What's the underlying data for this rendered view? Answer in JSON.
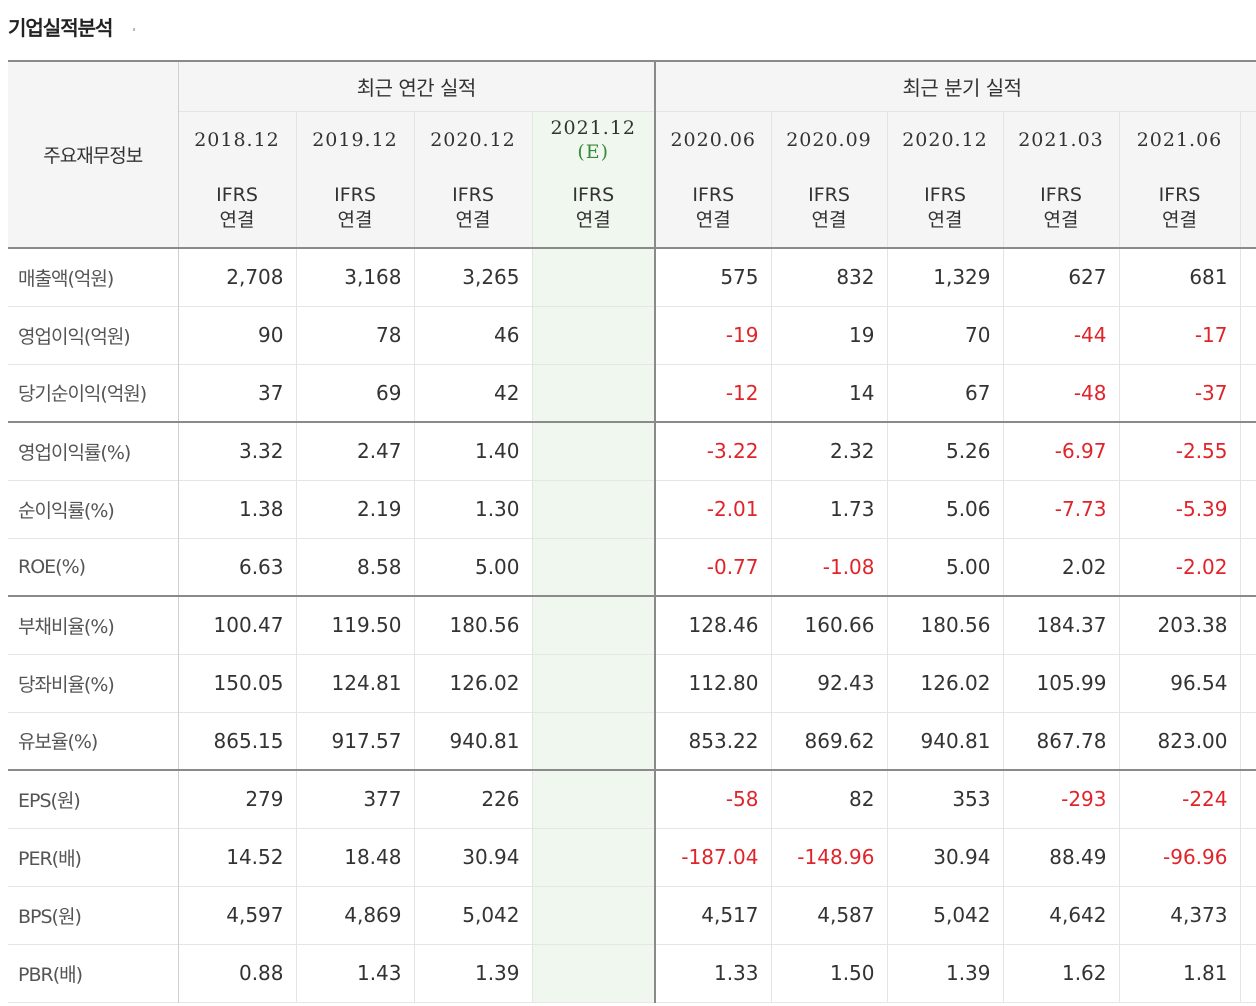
{
  "title": "기업실적분석",
  "header": {
    "row_label": "주요재무정보",
    "annual_group": "최근 연간 실적",
    "quarter_group": "최근 분기 실적",
    "annual_periods": [
      "2018.12",
      "2019.12",
      "2020.12",
      "2021.12"
    ],
    "estimate_tag": "(E)",
    "quarter_periods": [
      "2020.06",
      "2020.09",
      "2020.12",
      "2021.03",
      "2021.06"
    ],
    "basis_top": "IFRS",
    "basis_bottom": "연결"
  },
  "colors": {
    "negative": "#e0242a",
    "ifrs": "#e8793c",
    "estimate_bg": "#eff7ee",
    "estimate_text": "#3b8a3b"
  },
  "rows": [
    {
      "label": "매출액(억원)",
      "annual": [
        "2,708",
        "3,168",
        "3,265",
        ""
      ],
      "quarter": [
        "575",
        "832",
        "1,329",
        "627",
        "681"
      ],
      "group_end": false
    },
    {
      "label": "영업이익(억원)",
      "annual": [
        "90",
        "78",
        "46",
        ""
      ],
      "quarter": [
        "-19",
        "19",
        "70",
        "-44",
        "-17"
      ],
      "group_end": false
    },
    {
      "label": "당기순이익(억원)",
      "annual": [
        "37",
        "69",
        "42",
        ""
      ],
      "quarter": [
        "-12",
        "14",
        "67",
        "-48",
        "-37"
      ],
      "group_end": true
    },
    {
      "label": "영업이익률(%)",
      "annual": [
        "3.32",
        "2.47",
        "1.40",
        ""
      ],
      "quarter": [
        "-3.22",
        "2.32",
        "5.26",
        "-6.97",
        "-2.55"
      ],
      "group_end": false
    },
    {
      "label": "순이익률(%)",
      "annual": [
        "1.38",
        "2.19",
        "1.30",
        ""
      ],
      "quarter": [
        "-2.01",
        "1.73",
        "5.06",
        "-7.73",
        "-5.39"
      ],
      "group_end": false
    },
    {
      "label": "ROE(%)",
      "annual": [
        "6.63",
        "8.58",
        "5.00",
        ""
      ],
      "quarter": [
        "-0.77",
        "-1.08",
        "5.00",
        "2.02",
        "-2.02"
      ],
      "group_end": true
    },
    {
      "label": "부채비율(%)",
      "annual": [
        "100.47",
        "119.50",
        "180.56",
        ""
      ],
      "quarter": [
        "128.46",
        "160.66",
        "180.56",
        "184.37",
        "203.38"
      ],
      "group_end": false
    },
    {
      "label": "당좌비율(%)",
      "annual": [
        "150.05",
        "124.81",
        "126.02",
        ""
      ],
      "quarter": [
        "112.80",
        "92.43",
        "126.02",
        "105.99",
        "96.54"
      ],
      "group_end": false
    },
    {
      "label": "유보율(%)",
      "annual": [
        "865.15",
        "917.57",
        "940.81",
        ""
      ],
      "quarter": [
        "853.22",
        "869.62",
        "940.81",
        "867.78",
        "823.00"
      ],
      "group_end": true
    },
    {
      "label": "EPS(원)",
      "annual": [
        "279",
        "377",
        "226",
        ""
      ],
      "quarter": [
        "-58",
        "82",
        "353",
        "-293",
        "-224"
      ],
      "group_end": false
    },
    {
      "label": "PER(배)",
      "annual": [
        "14.52",
        "18.48",
        "30.94",
        ""
      ],
      "quarter": [
        "-187.04",
        "-148.96",
        "30.94",
        "88.49",
        "-96.96"
      ],
      "group_end": false
    },
    {
      "label": "BPS(원)",
      "annual": [
        "4,597",
        "4,869",
        "5,042",
        ""
      ],
      "quarter": [
        "4,517",
        "4,587",
        "5,042",
        "4,642",
        "4,373"
      ],
      "group_end": false
    },
    {
      "label": "PBR(배)",
      "annual": [
        "0.88",
        "1.43",
        "1.39",
        ""
      ],
      "quarter": [
        "1.33",
        "1.50",
        "1.39",
        "1.62",
        "1.81"
      ],
      "group_end": false
    }
  ]
}
